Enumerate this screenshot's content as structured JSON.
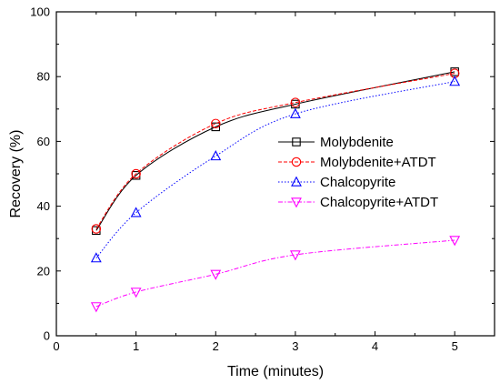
{
  "chart_data": {
    "type": "line",
    "title": "",
    "xlabel": "Time (minutes)",
    "ylabel": "Recovery (%)",
    "xlim": [
      0,
      5.5
    ],
    "ylim": [
      0,
      100
    ],
    "xticks": [
      0,
      1,
      2,
      3,
      4,
      5
    ],
    "yticks": [
      0,
      20,
      40,
      60,
      80,
      100
    ],
    "grid": false,
    "legend_position": "right",
    "series": [
      {
        "name": "Molybdenite",
        "color": "#000000",
        "dash": "solid",
        "marker": "square",
        "x": [
          0.5,
          1,
          2,
          3,
          5
        ],
        "y": [
          32.5,
          49.5,
          64.5,
          71.5,
          81.5
        ]
      },
      {
        "name": "Molybdenite+ATDT",
        "color": "#ff0000",
        "dash": "dashed",
        "marker": "circle",
        "x": [
          0.5,
          1,
          2,
          3,
          5
        ],
        "y": [
          33,
          50,
          65.5,
          72,
          81
        ]
      },
      {
        "name": "Chalcopyrite",
        "color": "#0000ff",
        "dash": "dotted",
        "marker": "triangle-up",
        "x": [
          0.5,
          1,
          2,
          3,
          5
        ],
        "y": [
          24,
          38,
          55.5,
          68.5,
          78.5
        ]
      },
      {
        "name": "Chalcopyrite+ATDT",
        "color": "#ff00ff",
        "dash": "dashdot",
        "marker": "triangle-down",
        "x": [
          0.5,
          1,
          2,
          3,
          5
        ],
        "y": [
          9,
          13.5,
          19,
          25,
          29.5
        ]
      }
    ]
  }
}
